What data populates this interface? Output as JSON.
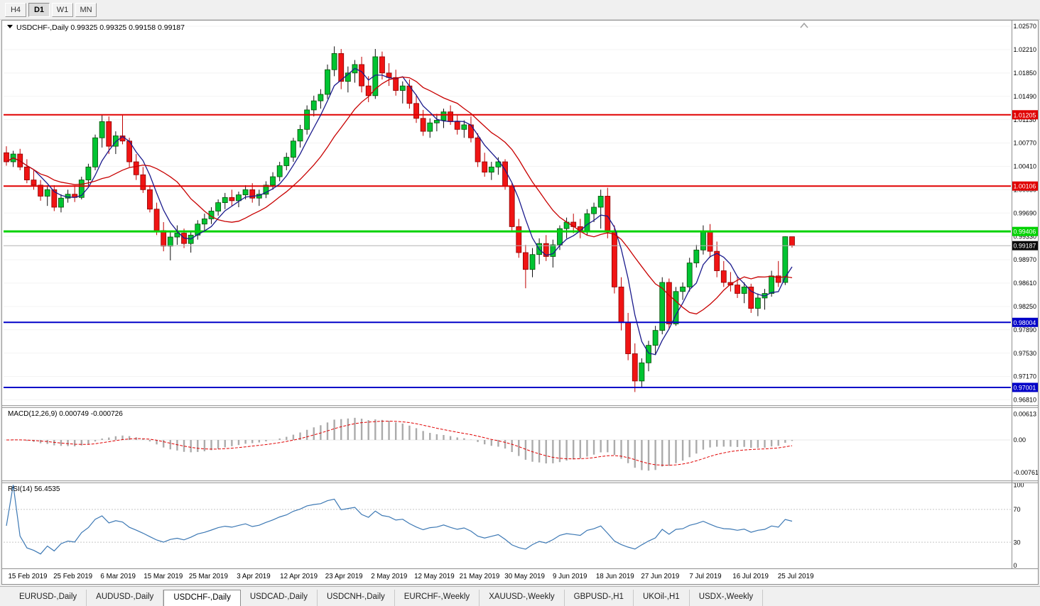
{
  "colors": {
    "candle_up": "#00C432",
    "candle_up_border": "#054D05",
    "candle_down": "#F01414",
    "candle_down_border": "#8A0000",
    "candle_down_wick": "#C00000",
    "ma_fast": "#1A1A8C",
    "ma_slow": "#C80000",
    "level_red": "#E00000",
    "level_green": "#00D200",
    "level_blue": "#0000C8",
    "current_price_bg": "#0A0A0A",
    "macd_hist": "#ABABAB",
    "macd_signal": "#E00000",
    "rsi_line": "#3C78B4"
  },
  "toolbar": {
    "timeframes": [
      {
        "label": "H4",
        "active": false
      },
      {
        "label": "D1",
        "active": true
      },
      {
        "label": "W1",
        "active": false
      },
      {
        "label": "MN",
        "active": false
      }
    ]
  },
  "chart": {
    "symbol_title": "USDCHF-,Daily",
    "ohlc": {
      "open": "0.99325",
      "high": "0.99325",
      "low": "0.99158",
      "close": "0.99187"
    },
    "current_price": "0.99187",
    "price_ticks": [
      "1.02570",
      "1.02210",
      "1.01850",
      "1.01490",
      "1.01130",
      "1.00770",
      "1.00410",
      "1.00050",
      "0.99690",
      "0.99330",
      "0.98970",
      "0.98610",
      "0.98250",
      "0.97890",
      "0.97530",
      "0.97170",
      "0.96810"
    ],
    "levels": [
      {
        "label": "1.01205",
        "value": 1.01205,
        "color_key": "level_red",
        "width": 2
      },
      {
        "label": "1.00106",
        "value": 1.00106,
        "color_key": "level_red",
        "width": 2
      },
      {
        "label": "0.99406",
        "value": 0.99406,
        "color_key": "level_green",
        "width": 3
      },
      {
        "label": "0.98004",
        "value": 0.98004,
        "color_key": "level_blue",
        "width": 2
      },
      {
        "label": "0.97001",
        "value": 0.97001,
        "color_key": "level_blue",
        "width": 2
      }
    ],
    "time_ticks": [
      "15 Feb 2019",
      "25 Feb 2019",
      "6 Mar 2019",
      "15 Mar 2019",
      "25 Mar 2019",
      "3 Apr 2019",
      "12 Apr 2019",
      "23 Apr 2019",
      "2 May 2019",
      "12 May 2019",
      "21 May 2019",
      "30 May 2019",
      "9 Jun 2019",
      "18 Jun 2019",
      "27 Jun 2019",
      "7 Jul 2019",
      "16 Jul 2019",
      "25 Jul 2019"
    ],
    "moving_averages": [
      {
        "period": 5,
        "color_key": "ma_fast"
      },
      {
        "period": 13,
        "color_key": "ma_slow"
      }
    ]
  },
  "chart_data": {
    "type": "candlestick",
    "title": "USDCHF-,Daily",
    "price_axis_range": [
      0.9681,
      1.0257
    ],
    "ohlc": [
      [
        1.0062,
        1.0072,
        1.0042,
        1.0048
      ],
      [
        1.0048,
        1.0065,
        1.004,
        1.006
      ],
      [
        1.006,
        1.0068,
        1.0035,
        1.004
      ],
      [
        1.004,
        1.0052,
        1.0015,
        1.002
      ],
      [
        1.002,
        1.0035,
        1.0005,
        1.0012
      ],
      [
        1.0012,
        1.002,
        0.9988,
        0.9995
      ],
      [
        0.9995,
        1.0012,
        0.998,
        1.0005
      ],
      [
        1.0005,
        1.0012,
        0.9972,
        0.9978
      ],
      [
        0.9978,
        0.9998,
        0.997,
        0.9992
      ],
      [
        0.9992,
        1.0005,
        0.9985,
        0.9998
      ],
      [
        0.9998,
        1.001,
        0.9986,
        0.9993
      ],
      [
        0.9993,
        1.0025,
        0.999,
        1.002
      ],
      [
        1.002,
        1.0045,
        1.001,
        1.004
      ],
      [
        1.004,
        1.009,
        1.0035,
        1.0085
      ],
      [
        1.0085,
        1.0121,
        1.007,
        1.011
      ],
      [
        1.011,
        1.0118,
        1.006,
        1.0072
      ],
      [
        1.0072,
        1.0095,
        1.006,
        1.0088
      ],
      [
        1.0088,
        1.012,
        1.0075,
        1.008
      ],
      [
        1.008,
        1.0085,
        1.004,
        1.0048
      ],
      [
        1.0048,
        1.006,
        1.002,
        1.0028
      ],
      [
        1.0028,
        1.004,
        1.0,
        1.0005
      ],
      [
        1.0005,
        1.0012,
        0.997,
        0.9975
      ],
      [
        0.9975,
        0.9985,
        0.9935,
        0.9942
      ],
      [
        0.9942,
        0.9955,
        0.991,
        0.9918
      ],
      [
        0.9918,
        0.994,
        0.9896,
        0.9932
      ],
      [
        0.9932,
        0.995,
        0.992,
        0.9938
      ],
      [
        0.9938,
        0.9945,
        0.9915,
        0.9922
      ],
      [
        0.9922,
        0.994,
        0.9908,
        0.9935
      ],
      [
        0.9935,
        0.9958,
        0.9928,
        0.9952
      ],
      [
        0.9952,
        0.9968,
        0.994,
        0.996
      ],
      [
        0.996,
        0.9978,
        0.9952,
        0.9972
      ],
      [
        0.9972,
        0.999,
        0.9965,
        0.9985
      ],
      [
        0.9985,
        1.0,
        0.9975,
        0.9993
      ],
      [
        0.9993,
        1.0005,
        0.998,
        0.9988
      ],
      [
        0.9988,
        1.0002,
        0.9978,
        0.9997
      ],
      [
        0.9997,
        1.0012,
        0.999,
        1.0005
      ],
      [
        1.0005,
        1.0015,
        0.9985,
        0.9992
      ],
      [
        0.9992,
        1.0005,
        0.998,
        0.9998
      ],
      [
        0.9998,
        1.0018,
        0.9992,
        1.0012
      ],
      [
        1.0012,
        1.0032,
        1.0005,
        1.0025
      ],
      [
        1.0025,
        1.0048,
        1.0018,
        1.0042
      ],
      [
        1.0042,
        1.0062,
        1.0035,
        1.0055
      ],
      [
        1.0055,
        1.0085,
        1.0048,
        1.008
      ],
      [
        1.008,
        1.0105,
        1.007,
        1.0098
      ],
      [
        1.0098,
        1.0135,
        1.009,
        1.0128
      ],
      [
        1.0128,
        1.015,
        1.0118,
        1.0142
      ],
      [
        1.0142,
        1.016,
        1.013,
        1.0152
      ],
      [
        1.0152,
        1.0198,
        1.0145,
        1.019
      ],
      [
        1.019,
        1.0226,
        1.018,
        1.0215
      ],
      [
        1.0215,
        1.0222,
        1.016,
        1.0172
      ],
      [
        1.0172,
        1.0195,
        1.0155,
        1.0185
      ],
      [
        1.0185,
        1.0205,
        1.017,
        1.0198
      ],
      [
        1.0198,
        1.021,
        1.0155,
        1.0165
      ],
      [
        1.0165,
        1.018,
        1.014,
        1.015
      ],
      [
        1.015,
        1.0222,
        1.0145,
        1.021
      ],
      [
        1.021,
        1.0218,
        1.0175,
        1.0185
      ],
      [
        1.0185,
        1.02,
        1.0165,
        1.0178
      ],
      [
        1.0178,
        1.019,
        1.015,
        1.0158
      ],
      [
        1.0158,
        1.0172,
        1.0138,
        1.0165
      ],
      [
        1.0165,
        1.0175,
        1.013,
        1.0138
      ],
      [
        1.0138,
        1.0152,
        1.0108,
        1.0115
      ],
      [
        1.0115,
        1.0128,
        1.0088,
        1.0095
      ],
      [
        1.0095,
        1.0115,
        1.0085,
        1.0108
      ],
      [
        1.0108,
        1.0122,
        1.0095,
        1.0112
      ],
      [
        1.0112,
        1.013,
        1.01,
        1.0125
      ],
      [
        1.0125,
        1.0135,
        1.0105,
        1.011
      ],
      [
        1.011,
        1.012,
        1.009,
        1.0098
      ],
      [
        1.0098,
        1.0112,
        1.0085,
        1.0105
      ],
      [
        1.0105,
        1.0118,
        1.0078,
        1.0085
      ],
      [
        1.0085,
        1.0092,
        1.004,
        1.0048
      ],
      [
        1.0048,
        1.0062,
        1.0025,
        1.0032
      ],
      [
        1.0032,
        1.0048,
        1.002,
        1.004
      ],
      [
        1.004,
        1.0055,
        1.0028,
        1.0048
      ],
      [
        1.0048,
        1.0052,
        1.0005,
        1.001
      ],
      [
        1.001,
        1.0015,
        0.994,
        0.9948
      ],
      [
        0.9948,
        0.996,
        0.99,
        0.9908
      ],
      [
        0.9908,
        0.992,
        0.9853,
        0.9882
      ],
      [
        0.9882,
        0.9915,
        0.987,
        0.9905
      ],
      [
        0.9905,
        0.993,
        0.989,
        0.9922
      ],
      [
        0.9922,
        0.9935,
        0.9895,
        0.9902
      ],
      [
        0.9902,
        0.9928,
        0.9885,
        0.992
      ],
      [
        0.992,
        0.995,
        0.9912,
        0.9945
      ],
      [
        0.9945,
        0.9962,
        0.993,
        0.9955
      ],
      [
        0.9955,
        0.9968,
        0.9938,
        0.9948
      ],
      [
        0.9948,
        0.996,
        0.993,
        0.994
      ],
      [
        0.994,
        0.9975,
        0.9935,
        0.9968
      ],
      [
        0.9968,
        0.9985,
        0.9955,
        0.9978
      ],
      [
        0.9978,
        1.0005,
        0.9945,
        0.9995
      ],
      [
        0.9995,
        1.0008,
        0.993,
        0.994
      ],
      [
        0.994,
        0.995,
        0.9845,
        0.9855
      ],
      [
        0.9855,
        0.987,
        0.9788,
        0.98
      ],
      [
        0.98,
        0.9815,
        0.9742,
        0.9752
      ],
      [
        0.9752,
        0.9768,
        0.9693,
        0.971
      ],
      [
        0.971,
        0.9745,
        0.97,
        0.9738
      ],
      [
        0.9738,
        0.9772,
        0.9725,
        0.9765
      ],
      [
        0.9765,
        0.9795,
        0.975,
        0.9788
      ],
      [
        0.9788,
        0.987,
        0.9782,
        0.9862
      ],
      [
        0.9862,
        0.9868,
        0.979,
        0.9798
      ],
      [
        0.9798,
        0.9855,
        0.9795,
        0.9848
      ],
      [
        0.9848,
        0.9862,
        0.9835,
        0.9855
      ],
      [
        0.9855,
        0.99,
        0.9848,
        0.9892
      ],
      [
        0.9892,
        0.992,
        0.9885,
        0.9912
      ],
      [
        0.9912,
        0.995,
        0.9905,
        0.994
      ],
      [
        0.994,
        0.9952,
        0.99,
        0.991
      ],
      [
        0.991,
        0.9925,
        0.987,
        0.988
      ],
      [
        0.988,
        0.9895,
        0.9855,
        0.9862
      ],
      [
        0.9862,
        0.9878,
        0.9848,
        0.9858
      ],
      [
        0.9858,
        0.9872,
        0.9838,
        0.9845
      ],
      [
        0.9845,
        0.9862,
        0.983,
        0.9855
      ],
      [
        0.9855,
        0.986,
        0.9815,
        0.9822
      ],
      [
        0.9822,
        0.9845,
        0.981,
        0.9838
      ],
      [
        0.9838,
        0.9852,
        0.982,
        0.9845
      ],
      [
        0.9845,
        0.988,
        0.984,
        0.9872
      ],
      [
        0.9872,
        0.9895,
        0.9855,
        0.9862
      ],
      [
        0.9862,
        0.9933,
        0.9858,
        0.99325
      ],
      [
        0.99325,
        0.99325,
        0.99158,
        0.99187
      ]
    ]
  },
  "indicators": {
    "macd": {
      "label": "MACD(12,26,9)",
      "value_main": "0.000749",
      "value_signal": "-0.000726",
      "fast": 12,
      "slow": 26,
      "signal": 9,
      "axis_ticks": [
        "0.00613",
        "0.00",
        "-0.00761"
      ],
      "axis_values": [
        0.00613,
        0,
        -0.00761
      ]
    },
    "rsi": {
      "label": "RSI(14)",
      "value": "56.4535",
      "period": 14,
      "axis_ticks": [
        "100",
        "70",
        "30",
        "0"
      ],
      "axis_values": [
        100,
        70,
        30,
        0
      ],
      "levels": [
        70,
        30
      ]
    }
  },
  "tabs": [
    {
      "label": "EURUSD-,Daily",
      "active": false
    },
    {
      "label": "AUDUSD-,Daily",
      "active": false
    },
    {
      "label": "USDCHF-,Daily",
      "active": true
    },
    {
      "label": "USDCAD-,Daily",
      "active": false
    },
    {
      "label": "USDCNH-,Daily",
      "active": false
    },
    {
      "label": "EURCHF-,Weekly",
      "active": false
    },
    {
      "label": "XAUUSD-,Weekly",
      "active": false
    },
    {
      "label": "GBPUSD-,H1",
      "active": false
    },
    {
      "label": "UKOil-,H1",
      "active": false
    },
    {
      "label": "USDX-,Weekly",
      "active": false
    }
  ]
}
